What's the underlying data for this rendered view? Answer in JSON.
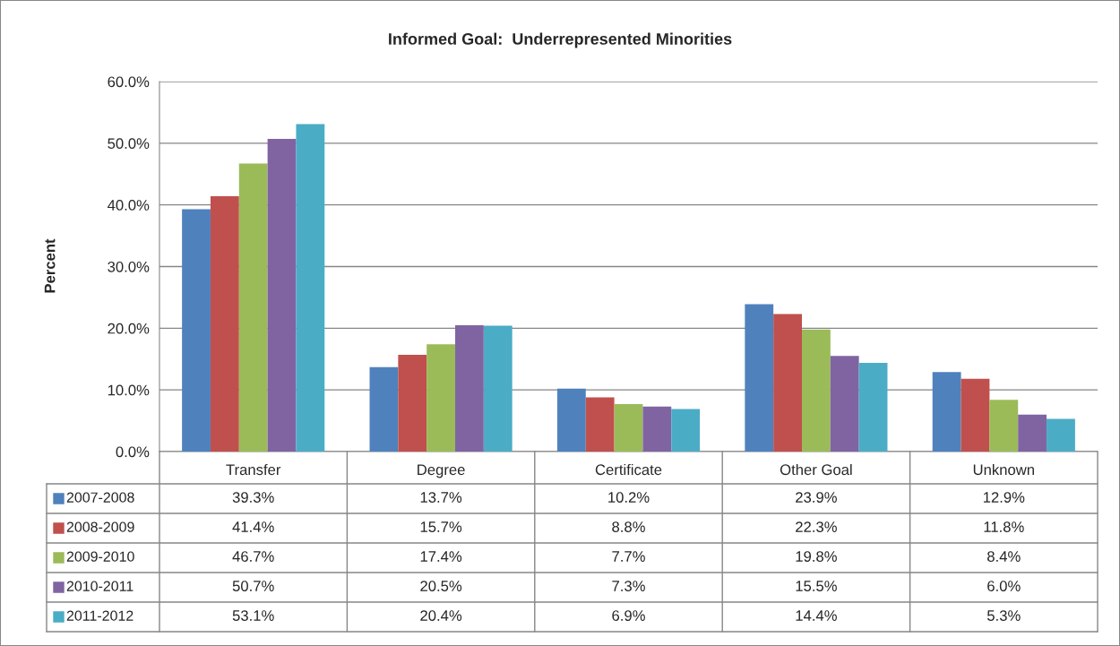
{
  "chart_data": {
    "type": "bar",
    "title": "Informed Goal:  Underrepresented Minorities",
    "ylabel": "Percent",
    "categories": [
      "Transfer",
      "Degree",
      "Certificate",
      "Other Goal",
      "Unknown"
    ],
    "series": [
      {
        "name": "2007-2008",
        "color": "#4f81bd",
        "values": [
          39.3,
          13.7,
          10.2,
          23.9,
          12.9
        ],
        "value_labels": [
          "39.3%",
          "13.7%",
          "10.2%",
          "23.9%",
          "12.9%"
        ]
      },
      {
        "name": "2008-2009",
        "color": "#c0504d",
        "values": [
          41.4,
          15.7,
          8.8,
          22.3,
          11.8
        ],
        "value_labels": [
          "41.4%",
          "15.7%",
          "8.8%",
          "22.3%",
          "11.8%"
        ]
      },
      {
        "name": "2009-2010",
        "color": "#9bbb59",
        "values": [
          46.7,
          17.4,
          7.7,
          19.8,
          8.4
        ],
        "value_labels": [
          "46.7%",
          "17.4%",
          "7.7%",
          "19.8%",
          "8.4%"
        ]
      },
      {
        "name": "2010-2011",
        "color": "#8064a2",
        "values": [
          50.7,
          20.5,
          7.3,
          15.5,
          6.0
        ],
        "value_labels": [
          "50.7%",
          "20.5%",
          "7.3%",
          "15.5%",
          "6.0%"
        ]
      },
      {
        "name": "2011-2012",
        "color": "#4bacc6",
        "values": [
          53.1,
          20.4,
          6.9,
          14.4,
          5.3
        ],
        "value_labels": [
          "53.1%",
          "20.4%",
          "6.9%",
          "14.4%",
          "5.3%"
        ]
      }
    ],
    "ylim": [
      0,
      60
    ],
    "yticks": [
      {
        "value": 0,
        "label": "0.0%"
      },
      {
        "value": 10,
        "label": "10.0%"
      },
      {
        "value": 20,
        "label": "20.0%"
      },
      {
        "value": 30,
        "label": "30.0%"
      },
      {
        "value": 40,
        "label": "40.0%"
      },
      {
        "value": 50,
        "label": "50.0%"
      },
      {
        "value": 60,
        "label": "60.0%"
      }
    ],
    "grid": "y",
    "legend": "bottom"
  }
}
